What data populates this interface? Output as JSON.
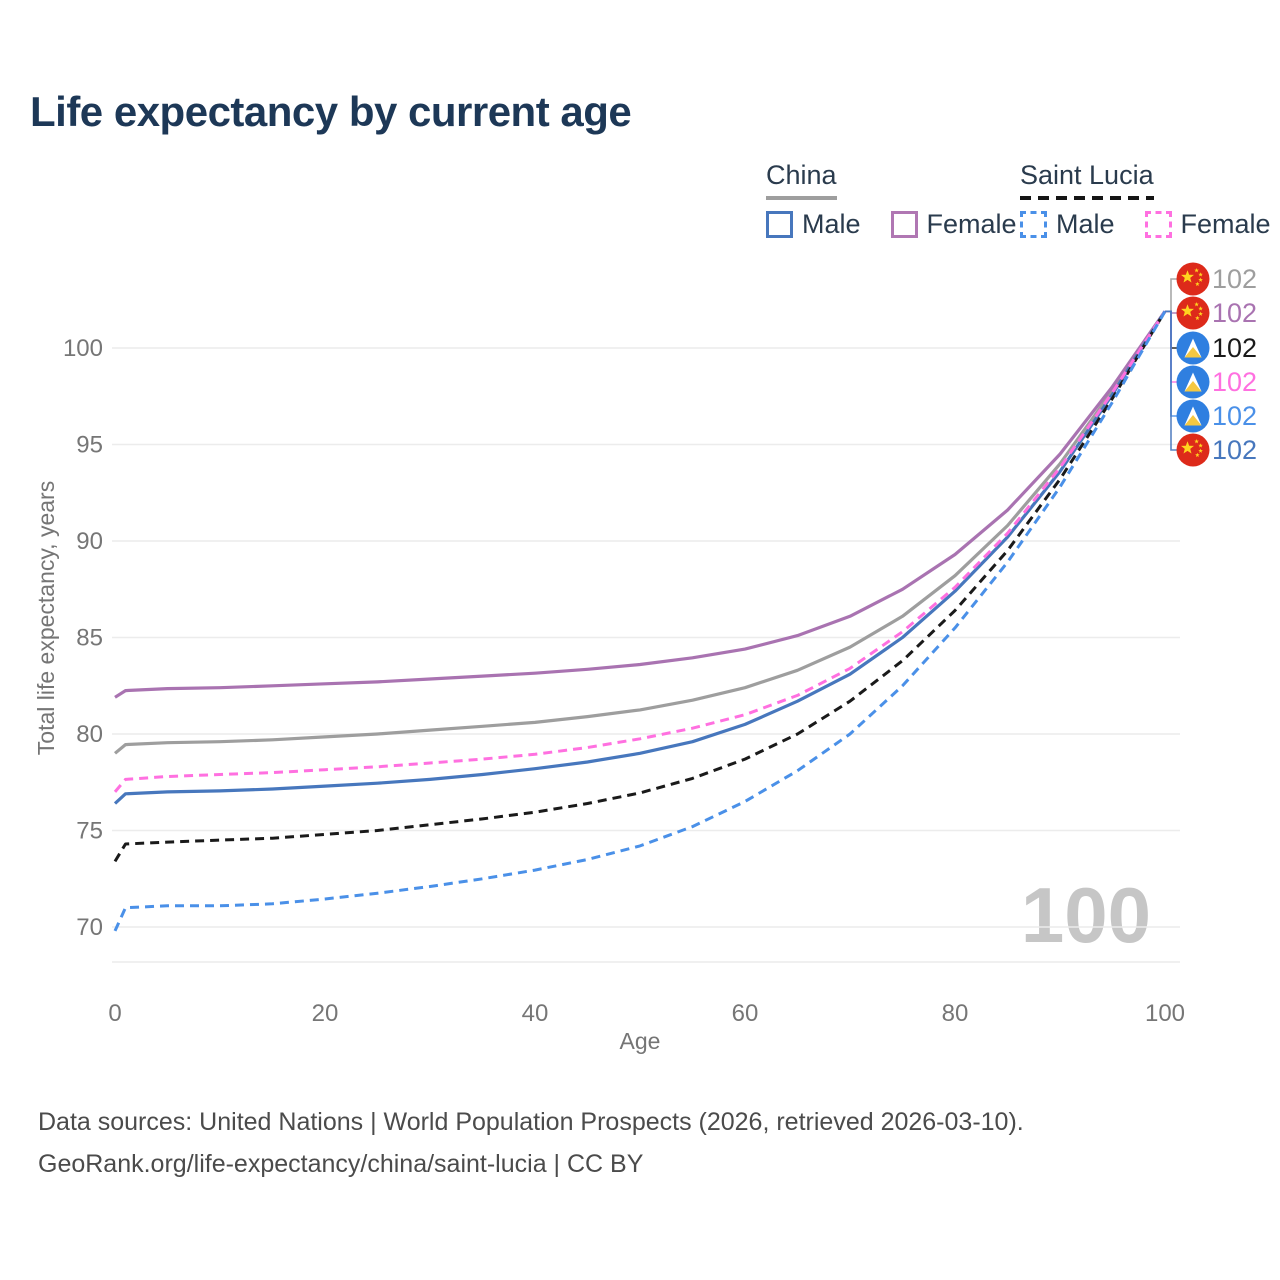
{
  "title": "Life expectancy by current age",
  "legend": {
    "china": {
      "label": "China",
      "male_label": "Male",
      "female_label": "Female"
    },
    "saint_lucia": {
      "label": "Saint Lucia",
      "male_label": "Male",
      "female_label": "Female"
    }
  },
  "watermark": "100",
  "footer": {
    "line1": "Data sources: United Nations | World Population Prospects (2026, retrieved 2026-03-10).",
    "line2": "GeoRank.org/life-expectancy/china/saint-lucia | CC BY"
  },
  "colors": {
    "china_total": "#9e9e9e",
    "china_female": "#a973b1",
    "china_male": "#4777bd",
    "saint_lucia_total": "#1a1a1a",
    "saint_lucia_female": "#ff70e0",
    "saint_lucia_male": "#4a90e8",
    "grid": "#ececec",
    "axis_text": "#767676",
    "title_text": "#1d3857",
    "watermark": "#c6c6c6",
    "flag_china_bg": "#dd2a1a",
    "flag_china_star": "#ffd41f",
    "flag_saint_lucia_bg": "#2f7fe0",
    "flag_saint_lucia_triangle_white": "#ffffff",
    "flag_saint_lucia_triangle_yellow": "#f5c842"
  },
  "chart_data": {
    "type": "line",
    "title": "Life expectancy by current age",
    "xlabel": "Age",
    "ylabel": "Total life expectancy, years",
    "xlim": [
      0,
      100
    ],
    "ylim": [
      68,
      103.5
    ],
    "x_ticks": [
      0,
      20,
      40,
      60,
      80,
      100
    ],
    "y_ticks": [
      70,
      75,
      80,
      85,
      90,
      95,
      100
    ],
    "grid": "horizontal",
    "legend_position": "top-right",
    "x": [
      0,
      1,
      5,
      10,
      15,
      20,
      25,
      30,
      35,
      40,
      45,
      50,
      55,
      60,
      65,
      70,
      75,
      80,
      85,
      90,
      95,
      100
    ],
    "series": [
      {
        "name": "China",
        "country": "China",
        "group": "total",
        "line_style": "solid",
        "color": "#9e9e9e",
        "flag": "china",
        "end_label": "102",
        "values": [
          79.0,
          79.45,
          79.55,
          79.6,
          79.7,
          79.85,
          80.0,
          80.2,
          80.4,
          80.6,
          80.9,
          81.25,
          81.75,
          82.4,
          83.3,
          84.5,
          86.1,
          88.2,
          90.8,
          94.0,
          97.8,
          101.9
        ]
      },
      {
        "name": "China Female",
        "country": "China",
        "group": "female",
        "line_style": "solid",
        "color": "#a973b1",
        "flag": "china",
        "end_label": "102",
        "values": [
          81.9,
          82.25,
          82.35,
          82.4,
          82.5,
          82.6,
          82.7,
          82.85,
          83.0,
          83.15,
          83.35,
          83.6,
          83.95,
          84.4,
          85.1,
          86.1,
          87.5,
          89.3,
          91.6,
          94.5,
          98.0,
          101.9
        ]
      },
      {
        "name": "Saint Lucia",
        "country": "Saint Lucia",
        "group": "total",
        "line_style": "dashed",
        "color": "#1a1a1a",
        "flag": "saint-lucia",
        "end_label": "102",
        "values": [
          73.4,
          74.3,
          74.4,
          74.5,
          74.6,
          74.8,
          75.0,
          75.3,
          75.6,
          75.95,
          76.4,
          76.95,
          77.7,
          78.7,
          80.0,
          81.7,
          83.8,
          86.4,
          89.5,
          93.2,
          97.4,
          101.9
        ]
      },
      {
        "name": "Saint Lucia Female",
        "country": "Saint Lucia",
        "group": "female",
        "line_style": "dashed",
        "color": "#ff70e0",
        "flag": "saint-lucia",
        "end_label": "102",
        "values": [
          77.0,
          77.65,
          77.8,
          77.9,
          78.0,
          78.15,
          78.3,
          78.5,
          78.7,
          78.95,
          79.3,
          79.75,
          80.3,
          81.0,
          82.0,
          83.4,
          85.3,
          87.6,
          90.4,
          93.8,
          97.7,
          101.9
        ]
      },
      {
        "name": "Saint Lucia Male",
        "country": "Saint Lucia",
        "group": "male",
        "line_style": "dashed",
        "color": "#4a90e8",
        "flag": "saint-lucia",
        "end_label": "102",
        "values": [
          69.8,
          71.0,
          71.1,
          71.1,
          71.2,
          71.45,
          71.75,
          72.1,
          72.5,
          72.95,
          73.5,
          74.2,
          75.2,
          76.5,
          78.1,
          80.0,
          82.5,
          85.5,
          88.9,
          92.8,
          97.2,
          101.9
        ]
      },
      {
        "name": "China Male",
        "country": "China",
        "group": "male",
        "line_style": "solid",
        "color": "#4777bd",
        "flag": "china",
        "end_label": "102",
        "values": [
          76.4,
          76.9,
          77.0,
          77.05,
          77.15,
          77.3,
          77.45,
          77.65,
          77.9,
          78.2,
          78.55,
          79.0,
          79.6,
          80.5,
          81.7,
          83.1,
          85.0,
          87.4,
          90.2,
          93.6,
          97.6,
          101.9
        ]
      }
    ]
  }
}
